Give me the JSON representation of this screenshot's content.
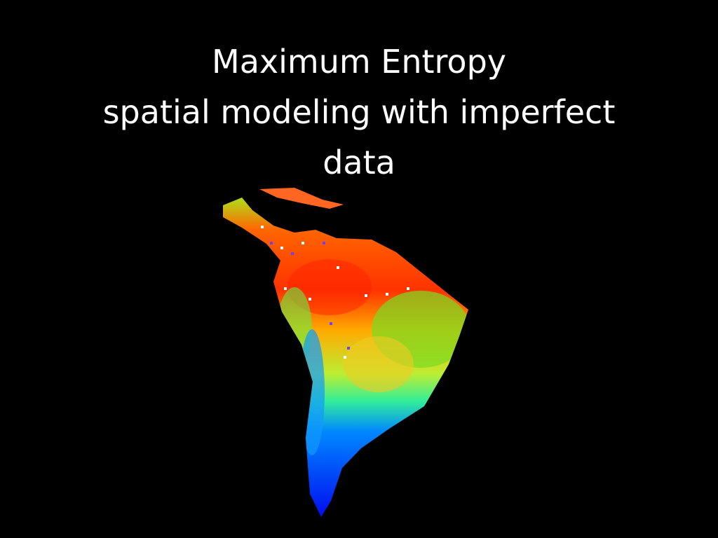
{
  "title": {
    "lines": [
      "Maximum Entropy",
      "spatial modeling with imperfect",
      "data"
    ]
  }
}
